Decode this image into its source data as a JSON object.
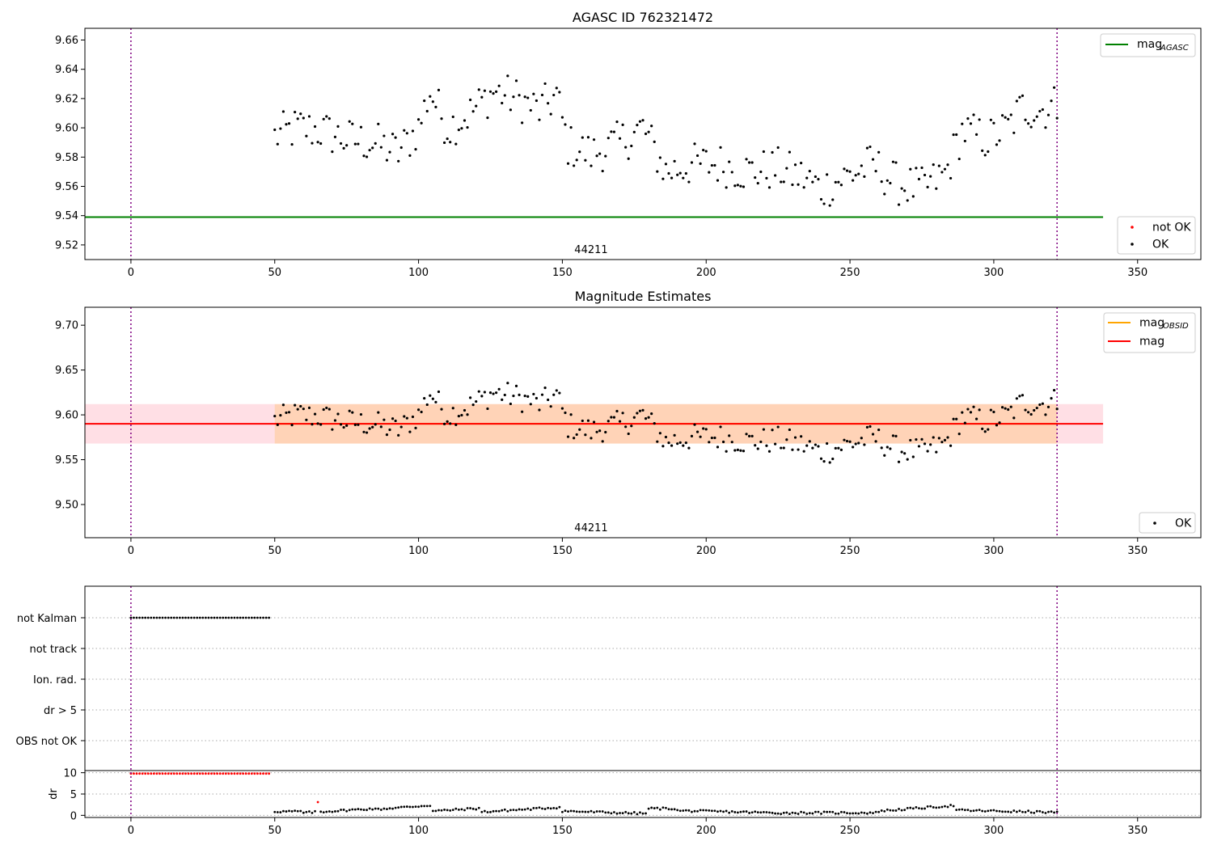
{
  "chart_data": [
    {
      "type": "scatter",
      "title": "AGASC ID 762321472",
      "xlim": [
        -16,
        372
      ],
      "ylim": [
        9.51,
        9.668
      ],
      "x_ticks": [
        0,
        50,
        100,
        150,
        200,
        250,
        300,
        350
      ],
      "y_ticks": [
        9.52,
        9.54,
        9.56,
        9.58,
        9.6,
        9.62,
        9.64,
        9.66
      ],
      "y_tick_labels": [
        "9.52",
        "9.54",
        "9.56",
        "9.58",
        "9.60",
        "9.62",
        "9.64",
        "9.66"
      ],
      "vlines": [
        0,
        322
      ],
      "mag_agasc": 9.539,
      "mag_agasc_range": [
        -16,
        338
      ],
      "obs_label": "44211",
      "obs_label_x": 160,
      "legend_upper": {
        "main": "mag",
        "sub": "AGASC",
        "color": "#008000"
      },
      "legend_lower": [
        {
          "label": "not OK",
          "color": "#ff0000"
        },
        {
          "label": "OK",
          "color": "#000000"
        }
      ]
    },
    {
      "type": "scatter",
      "title": "Magnitude Estimates",
      "xlim": [
        -16,
        372
      ],
      "ylim": [
        9.463,
        9.72
      ],
      "x_ticks": [
        0,
        50,
        100,
        150,
        200,
        250,
        300,
        350
      ],
      "y_ticks": [
        9.5,
        9.55,
        9.6,
        9.65,
        9.7
      ],
      "y_tick_labels": [
        "9.50",
        "9.55",
        "9.60",
        "9.65",
        "9.70"
      ],
      "vlines": [
        0,
        322
      ],
      "mag": 9.59,
      "mag_band": [
        9.568,
        9.612
      ],
      "band_range": [
        -16,
        338
      ],
      "mag_obsid": 9.59,
      "mag_obsid_range": [
        50,
        322
      ],
      "obs_label": "44211",
      "obs_label_x": 160,
      "legend_upper": [
        {
          "main": "mag",
          "sub": "OBSID",
          "color": "#ffa500"
        },
        {
          "main": "mag",
          "sub": "",
          "color": "#ff0000"
        }
      ],
      "legend_lower": [
        {
          "label": "OK",
          "color": "#000000"
        }
      ]
    },
    {
      "type": "scatter",
      "title": "",
      "xlim": [
        -16,
        372
      ],
      "x_ticks": [
        0,
        50,
        100,
        150,
        200,
        250,
        300,
        350
      ],
      "flag_rows": [
        "not Kalman",
        "not track",
        "Ion. rad.",
        "dr > 5",
        "OBS not OK"
      ],
      "not_kalman_range": [
        0,
        48
      ],
      "vlines": [
        0,
        322
      ],
      "dr_ylabel": "dr",
      "dr_ylim": [
        -0.5,
        10.5
      ],
      "dr_y_ticks": [
        0,
        5,
        10
      ],
      "dr_y_tick_labels": [
        "0",
        "5",
        "10"
      ],
      "dr_flagged_range": [
        0,
        48
      ],
      "dr_flagged_value": 9.8,
      "dr_outlier": {
        "x": 65,
        "y": 3.1
      }
    }
  ]
}
